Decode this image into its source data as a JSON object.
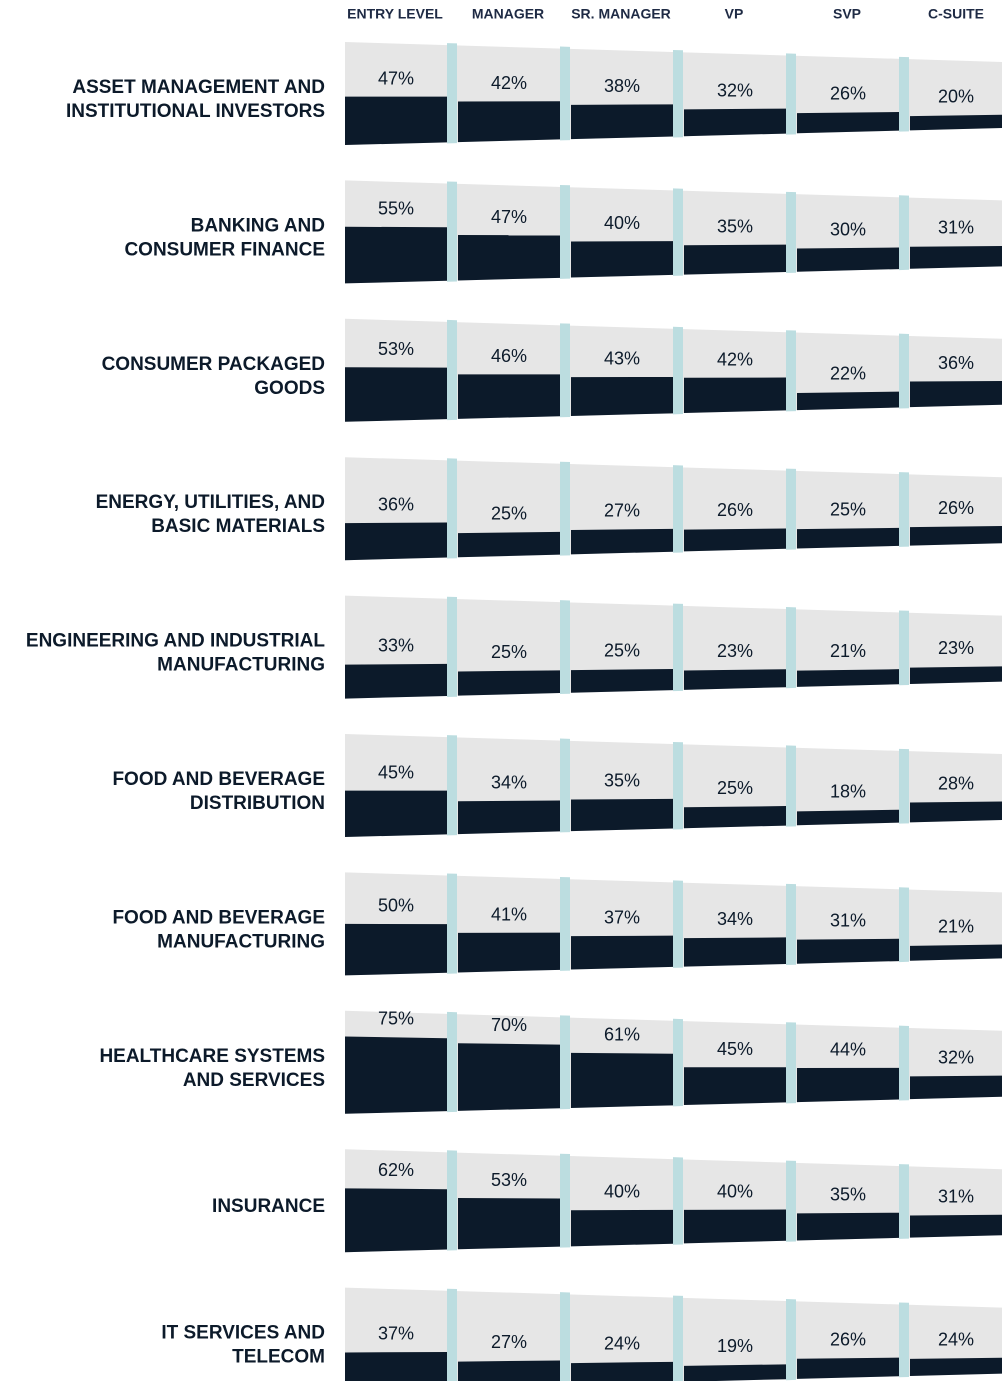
{
  "chart_data": {
    "type": "pipeline",
    "categories": [
      [
        "ASSET MANAGEMENT AND",
        "INSTITUTIONAL INVESTORS"
      ],
      [
        "BANKING AND",
        "CONSUMER FINANCE"
      ],
      [
        "CONSUMER PACKAGED",
        "GOODS"
      ],
      [
        "ENERGY, UTILITIES, AND",
        "BASIC MATERIALS"
      ],
      [
        "ENGINEERING AND INDUSTRIAL",
        "MANUFACTURING"
      ],
      [
        "FOOD AND BEVERAGE",
        "DISTRIBUTION"
      ],
      [
        "FOOD AND BEVERAGE",
        "MANUFACTURING"
      ],
      [
        "HEALTHCARE SYSTEMS",
        "AND SERVICES"
      ],
      [
        "INSURANCE"
      ],
      [
        "IT SERVICES AND",
        "TELECOM"
      ]
    ],
    "ylim": [
      0,
      100
    ],
    "color": "#0c1a2a",
    "background_color": "#e6e6e6",
    "separator_color": "#bcdde0",
    "series": [
      {
        "name": "ENTRY LEVEL",
        "values": [
          47,
          55,
          53,
          36,
          33,
          45,
          50,
          75,
          62,
          37
        ],
        "value_labels": [
          "47%",
          "55%",
          "53%",
          "36%",
          "33%",
          "45%",
          "50%",
          "75%",
          "62%",
          "37%"
        ]
      },
      {
        "name": "MANAGER",
        "values": [
          42,
          47,
          46,
          25,
          25,
          34,
          41,
          70,
          53,
          27
        ],
        "value_labels": [
          "42%",
          "47%",
          "46%",
          "25%",
          "25%",
          "34%",
          "41%",
          "70%",
          "53%",
          "27%"
        ]
      },
      {
        "name": "SR. MANAGER",
        "values": [
          38,
          40,
          43,
          27,
          25,
          35,
          37,
          61,
          40,
          24
        ],
        "value_labels": [
          "38%",
          "40%",
          "43%",
          "27%",
          "25%",
          "35%",
          "37%",
          "61%",
          "40%",
          "24%"
        ]
      },
      {
        "name": "VP",
        "values": [
          32,
          35,
          42,
          26,
          23,
          25,
          34,
          45,
          40,
          19
        ],
        "value_labels": [
          "32%",
          "35%",
          "42%",
          "26%",
          "23%",
          "25%",
          "34%",
          "45%",
          "40%",
          "19%"
        ]
      },
      {
        "name": "SVP",
        "values": [
          26,
          30,
          22,
          25,
          21,
          18,
          31,
          44,
          35,
          26
        ],
        "value_labels": [
          "26%",
          "30%",
          "22%",
          "25%",
          "21%",
          "18%",
          "31%",
          "44%",
          "35%",
          "26%"
        ]
      },
      {
        "name": "C-SUITE",
        "values": [
          20,
          31,
          36,
          26,
          23,
          28,
          21,
          32,
          31,
          24
        ],
        "value_labels": [
          "20%",
          "31%",
          "36%",
          "26%",
          "23%",
          "28%",
          "21%",
          "32%",
          "31%",
          "24%"
        ]
      }
    ]
  }
}
